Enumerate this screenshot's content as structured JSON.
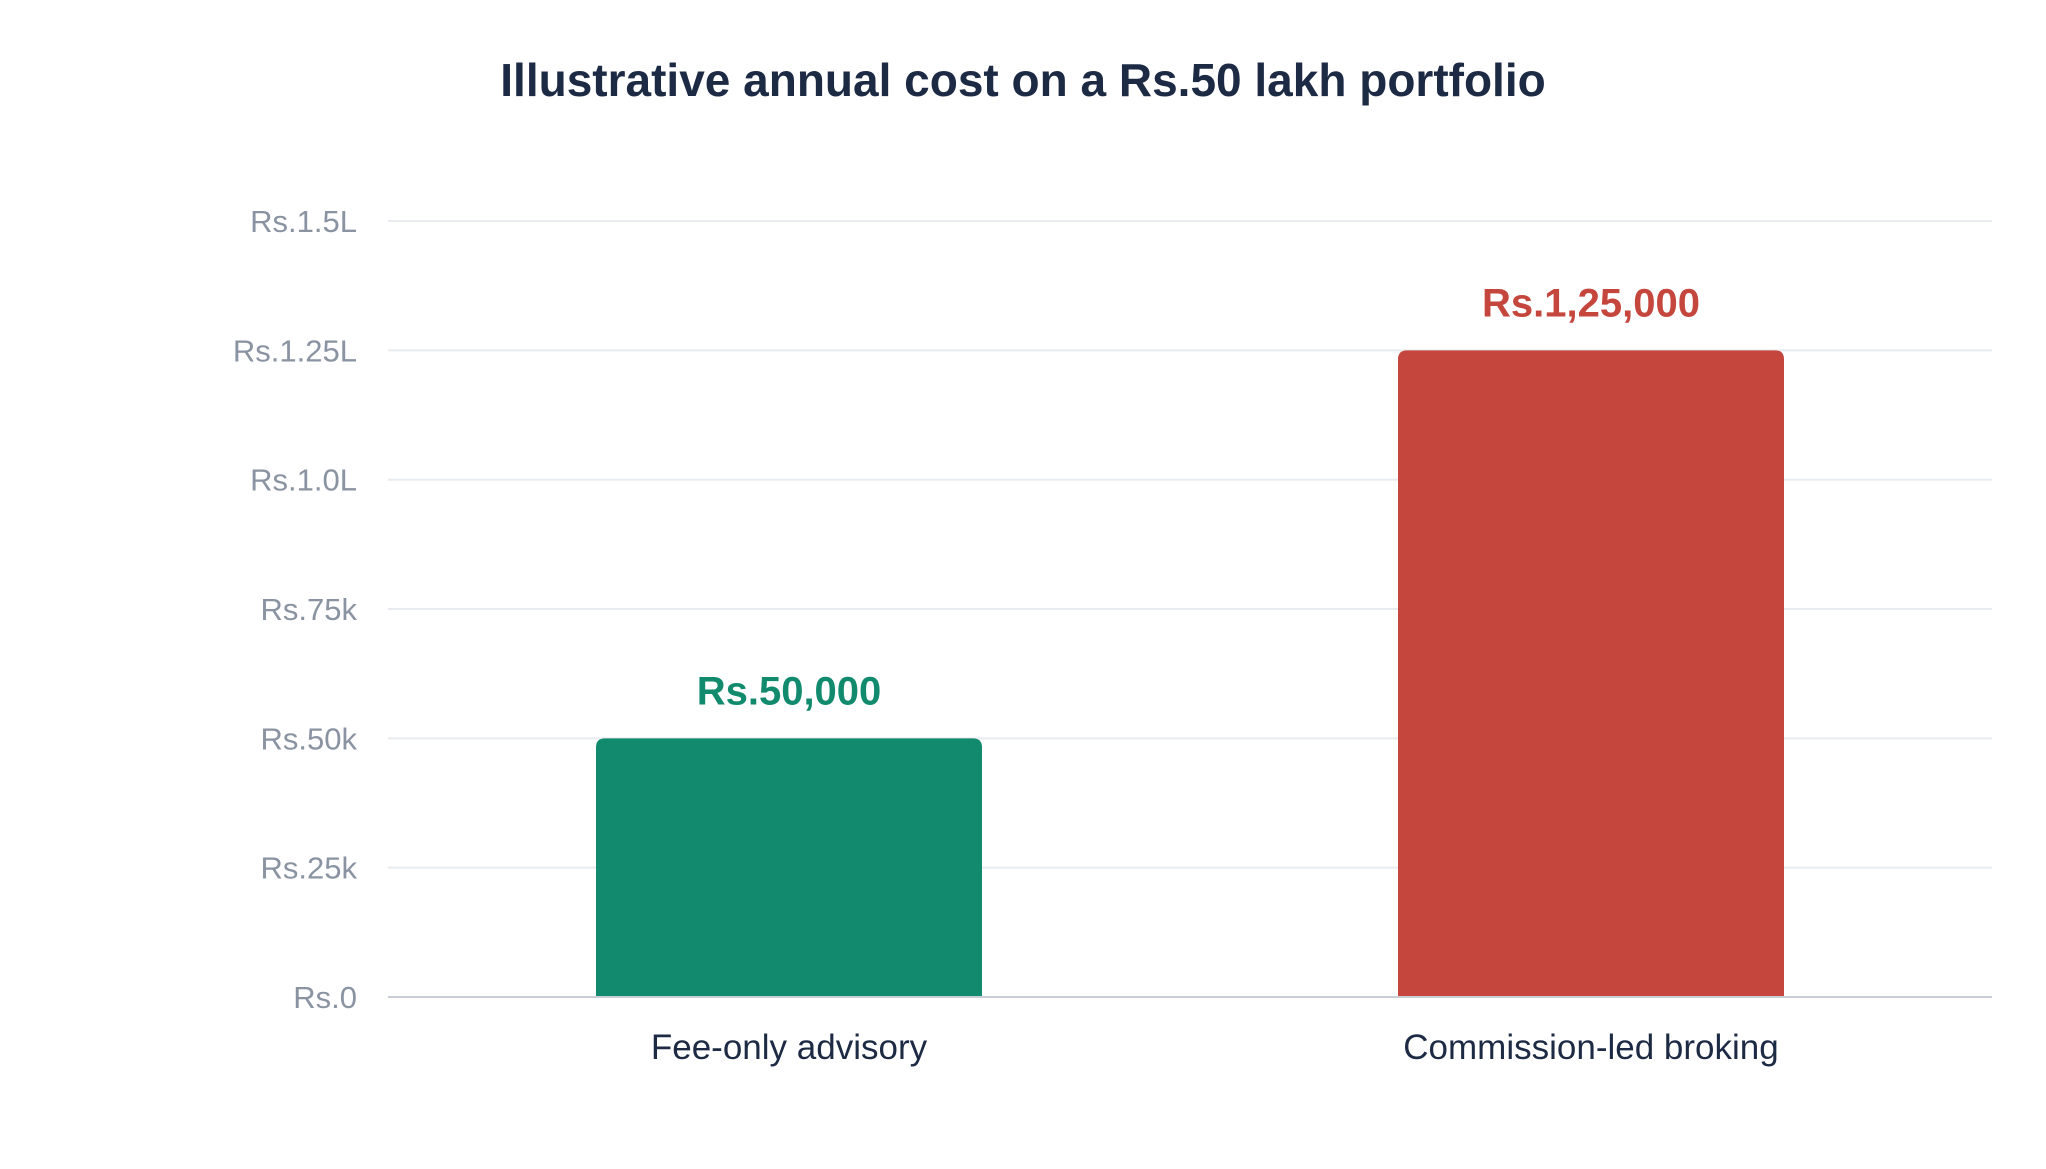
{
  "chart_data": {
    "type": "bar",
    "title": "Illustrative annual cost on a Rs.50 lakh portfolio",
    "xlabel": "",
    "ylabel": "",
    "ylim": [
      0,
      150000
    ],
    "grid": true,
    "legend": "none",
    "categories": [
      "Fee-only advisory",
      "Commission-led broking"
    ],
    "values": [
      50000,
      125000
    ],
    "value_labels": [
      "Rs.50,000",
      "Rs.1,25,000"
    ],
    "colors": [
      "#118a6e",
      "#c4463d"
    ],
    "y_ticks": [
      {
        "value": 0,
        "label": "Rs.0"
      },
      {
        "value": 25000,
        "label": "Rs.25k"
      },
      {
        "value": 50000,
        "label": "Rs.50k"
      },
      {
        "value": 75000,
        "label": "Rs.75k"
      },
      {
        "value": 100000,
        "label": "Rs.1.0L"
      },
      {
        "value": 125000,
        "label": "Rs.1.25L"
      },
      {
        "value": 150000,
        "label": "Rs.1.5L"
      }
    ]
  }
}
